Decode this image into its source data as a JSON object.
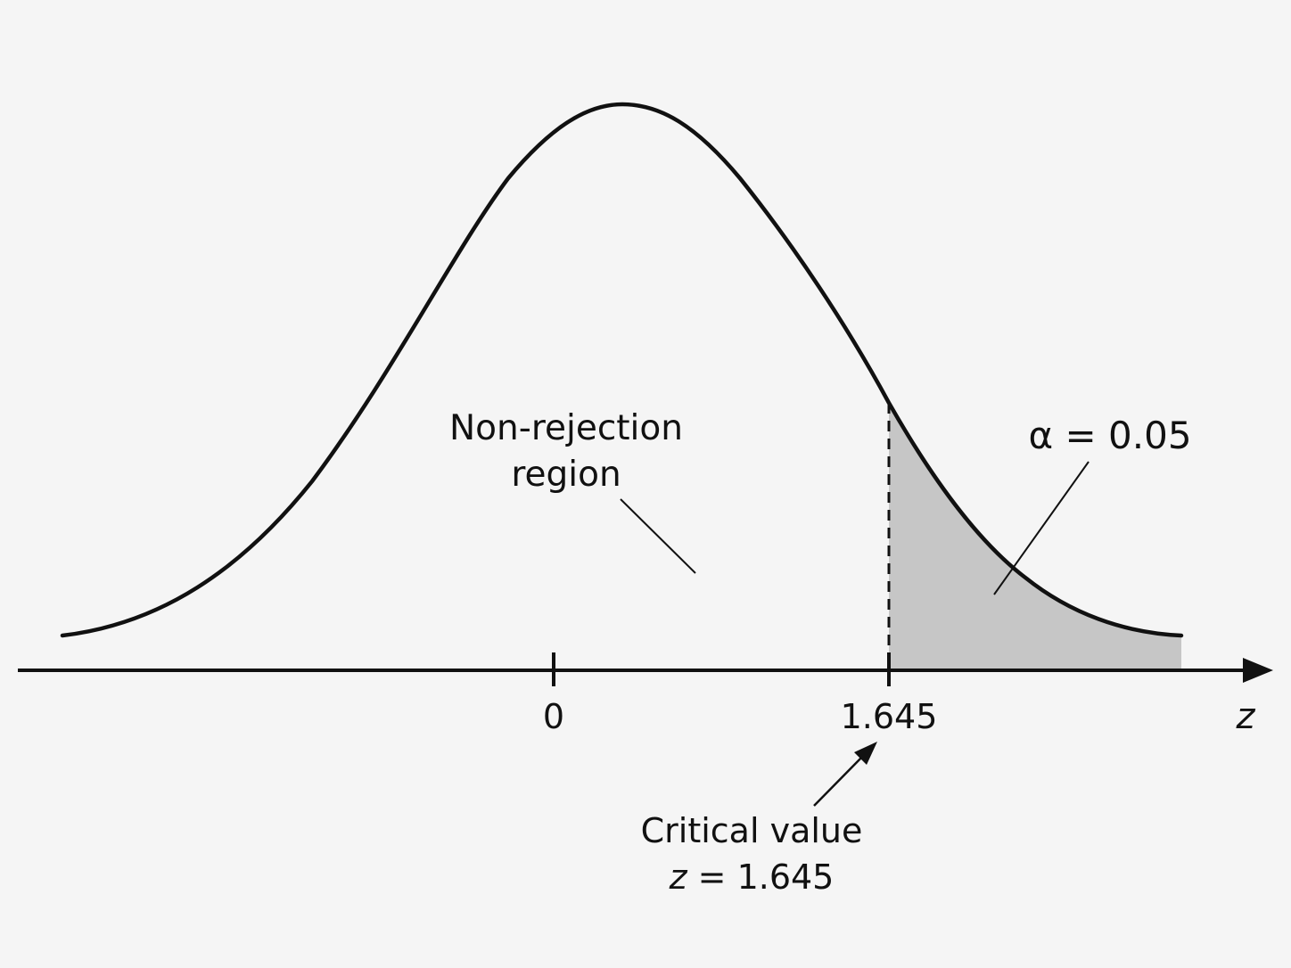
{
  "diagram": {
    "region_label_line1": "Non-rejection",
    "region_label_line2": "region",
    "alpha_label": "α = 0.05",
    "tick_zero": "0",
    "tick_critical": "1.645",
    "axis_variable": "z",
    "critical_label_line1": "Critical value",
    "critical_label_line2_var": "z",
    "critical_label_line2_rest": " = 1.645"
  },
  "colors": {
    "background": "#f5f5f5",
    "curve": "#111111",
    "rejection_fill": "#c6c6c6"
  },
  "values": {
    "critical_z": 1.645,
    "alpha": 0.05
  }
}
